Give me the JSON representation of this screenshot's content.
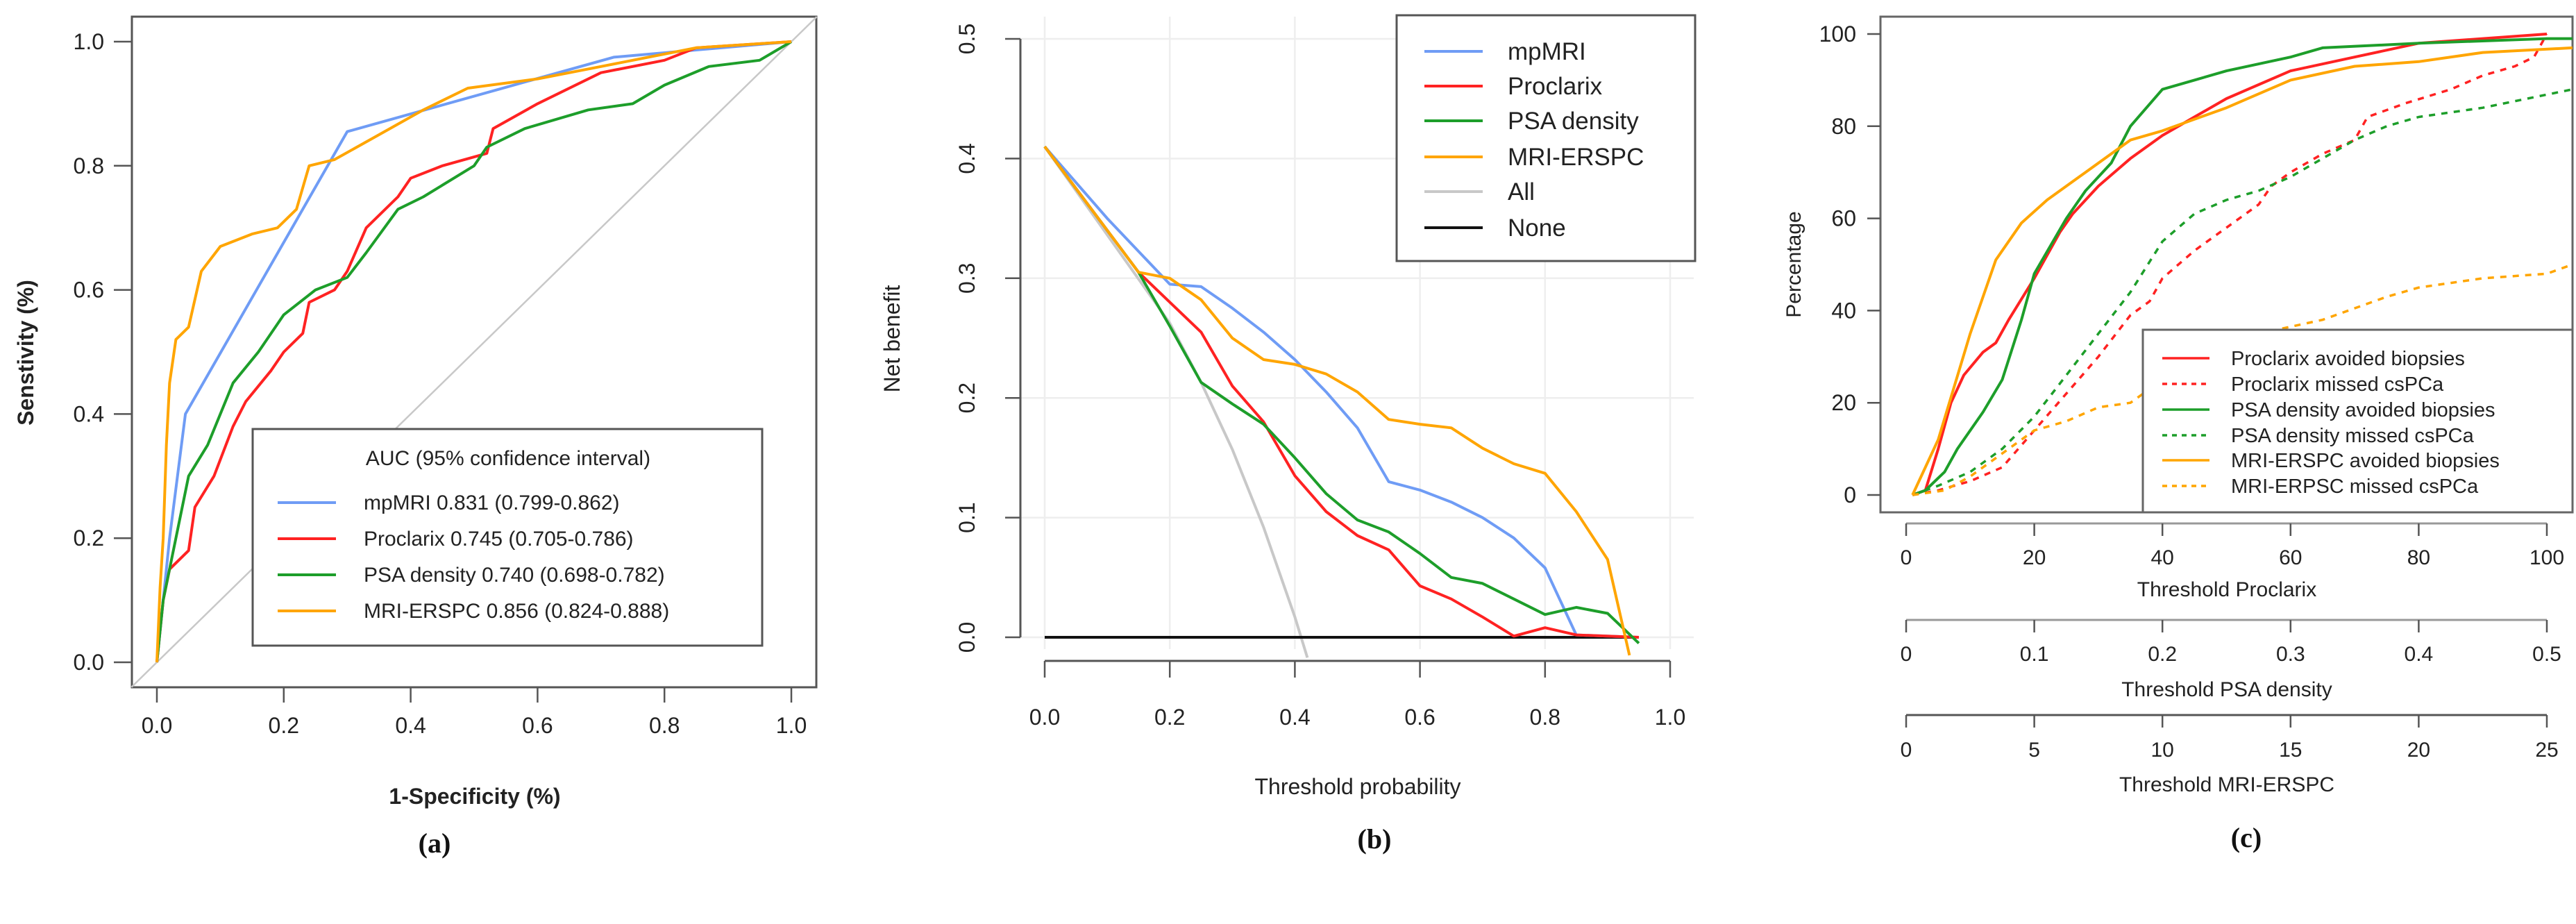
{
  "colors": {
    "mpMRI": "#6f9cf5",
    "Proclarix": "#ff2222",
    "PSA density": "#1d9e2a",
    "MRI-ERSPC": "#ffa500",
    "All": "#c8c8c8",
    "None": "#111111",
    "diag": "#c8c8c8"
  },
  "chart_data": [
    {
      "panel_label": "(a)",
      "type": "line",
      "xlabel": "1-Specificity (%)",
      "ylabel": "Senstivity (%)",
      "xlim": [
        0,
        1
      ],
      "ylim": [
        0,
        1
      ],
      "xticks": [
        "0.0",
        "0.2",
        "0.4",
        "0.6",
        "0.8",
        "1.0"
      ],
      "yticks": [
        "0.0",
        "0.2",
        "0.4",
        "0.6",
        "0.8",
        "1.0"
      ],
      "legend": {
        "title": "AUC (95% confidence interval)",
        "position": "bottom-right",
        "entries": [
          "mpMRI  0.831 (0.799-0.862)",
          "Proclarix  0.745 (0.705-0.786)",
          "PSA density  0.740 (0.698-0.782)",
          "MRI-ERSPC  0.856 (0.824-0.888)"
        ]
      },
      "series": [
        {
          "name": "mpMRI",
          "x": [
            0,
            0.01,
            0.02,
            0.045,
            0.3,
            0.72,
            1
          ],
          "y": [
            0,
            0.1,
            0.2,
            0.4,
            0.855,
            0.975,
            1
          ]
        },
        {
          "name": "Proclarix",
          "x": [
            0,
            0.01,
            0.02,
            0.05,
            0.06,
            0.09,
            0.12,
            0.14,
            0.18,
            0.2,
            0.23,
            0.24,
            0.28,
            0.3,
            0.33,
            0.38,
            0.4,
            0.45,
            0.52,
            0.53,
            0.6,
            0.7,
            0.8,
            0.85,
            1
          ],
          "y": [
            0,
            0.1,
            0.15,
            0.18,
            0.25,
            0.3,
            0.38,
            0.42,
            0.47,
            0.5,
            0.53,
            0.58,
            0.6,
            0.63,
            0.7,
            0.75,
            0.78,
            0.8,
            0.82,
            0.86,
            0.9,
            0.95,
            0.97,
            0.99,
            1
          ]
        },
        {
          "name": "PSA density",
          "x": [
            0,
            0.01,
            0.03,
            0.05,
            0.08,
            0.12,
            0.16,
            0.2,
            0.25,
            0.3,
            0.33,
            0.38,
            0.42,
            0.5,
            0.52,
            0.58,
            0.68,
            0.75,
            0.8,
            0.87,
            0.95,
            1
          ],
          "y": [
            0,
            0.1,
            0.2,
            0.3,
            0.35,
            0.45,
            0.5,
            0.56,
            0.6,
            0.62,
            0.66,
            0.73,
            0.75,
            0.8,
            0.83,
            0.86,
            0.89,
            0.9,
            0.93,
            0.96,
            0.97,
            1
          ]
        },
        {
          "name": "MRI-ERSPC",
          "x": [
            0,
            0.005,
            0.01,
            0.015,
            0.02,
            0.03,
            0.05,
            0.07,
            0.1,
            0.15,
            0.19,
            0.22,
            0.24,
            0.28,
            0.35,
            0.42,
            0.49,
            0.6,
            0.7,
            0.85,
            1
          ],
          "y": [
            0,
            0.12,
            0.2,
            0.35,
            0.45,
            0.52,
            0.54,
            0.63,
            0.67,
            0.69,
            0.7,
            0.73,
            0.8,
            0.81,
            0.85,
            0.89,
            0.925,
            0.94,
            0.96,
            0.99,
            1
          ]
        }
      ]
    },
    {
      "panel_label": "(b)",
      "type": "line",
      "xlabel": "Threshold probability",
      "ylabel": "Net benefit",
      "xlim": [
        0,
        1
      ],
      "ylim": [
        -0.02,
        0.5
      ],
      "grid": true,
      "xticks": [
        "0.0",
        "0.2",
        "0.4",
        "0.6",
        "0.8",
        "1.0"
      ],
      "yticks": [
        "0.0",
        "0.1",
        "0.2",
        "0.3",
        "0.4",
        "0.5"
      ],
      "legend": {
        "position": "top-right",
        "entries": [
          "mpMRI",
          "Proclarix",
          "PSA density",
          "MRI-ERSPC",
          "All",
          "None"
        ]
      },
      "series": [
        {
          "name": "All",
          "x": [
            0,
            0.2,
            0.25,
            0.3,
            0.35,
            0.4,
            0.42
          ],
          "y": [
            0.41,
            0.2625,
            0.213,
            0.157,
            0.092,
            0.017,
            -0.017
          ]
        },
        {
          "name": "None",
          "x": [
            0,
            0.95
          ],
          "y": [
            0,
            0
          ]
        },
        {
          "name": "mpMRI",
          "x": [
            0,
            0.1,
            0.2,
            0.25,
            0.3,
            0.35,
            0.4,
            0.45,
            0.5,
            0.55,
            0.6,
            0.65,
            0.7,
            0.75,
            0.8,
            0.85,
            0.95
          ],
          "y": [
            0.41,
            0.35,
            0.295,
            0.293,
            0.275,
            0.255,
            0.232,
            0.205,
            0.175,
            0.13,
            0.123,
            0.113,
            0.1,
            0.083,
            0.058,
            0.002,
            0
          ]
        },
        {
          "name": "Proclarix",
          "x": [
            0,
            0.15,
            0.2,
            0.25,
            0.3,
            0.35,
            0.4,
            0.45,
            0.5,
            0.55,
            0.6,
            0.65,
            0.7,
            0.75,
            0.8,
            0.85,
            0.95
          ],
          "y": [
            0.41,
            0.305,
            0.28,
            0.255,
            0.21,
            0.18,
            0.135,
            0.105,
            0.085,
            0.073,
            0.043,
            0.032,
            0.017,
            0.001,
            0.008,
            0.002,
            0
          ]
        },
        {
          "name": "PSA density",
          "x": [
            0,
            0.15,
            0.2,
            0.25,
            0.3,
            0.35,
            0.4,
            0.45,
            0.5,
            0.55,
            0.6,
            0.65,
            0.7,
            0.75,
            0.8,
            0.85,
            0.9,
            0.95
          ],
          "y": [
            0.41,
            0.305,
            0.26,
            0.213,
            0.195,
            0.178,
            0.15,
            0.12,
            0.098,
            0.088,
            0.07,
            0.05,
            0.045,
            0.032,
            0.019,
            0.025,
            0.02,
            -0.005
          ]
        },
        {
          "name": "MRI-ERSPC",
          "x": [
            0,
            0.15,
            0.2,
            0.25,
            0.3,
            0.35,
            0.4,
            0.45,
            0.5,
            0.55,
            0.6,
            0.65,
            0.7,
            0.75,
            0.8,
            0.85,
            0.9,
            0.935
          ],
          "y": [
            0.41,
            0.305,
            0.3,
            0.282,
            0.25,
            0.232,
            0.228,
            0.22,
            0.205,
            0.182,
            0.178,
            0.175,
            0.158,
            0.145,
            0.137,
            0.105,
            0.065,
            -0.015
          ]
        }
      ]
    },
    {
      "panel_label": "(c)",
      "type": "line",
      "ylabel": "Percentage",
      "xlim": [
        0,
        104
      ],
      "ylim": [
        0,
        100
      ],
      "yticks": [
        "0",
        "20",
        "40",
        "60",
        "80",
        "100"
      ],
      "x_axes": [
        {
          "title": "Threshold Proclarix",
          "ticks": [
            "0",
            "20",
            "40",
            "60",
            "80",
            "100"
          ]
        },
        {
          "title": "Threshold PSA density",
          "ticks": [
            "0",
            "0.1",
            "0.2",
            "0.3",
            "0.4",
            "0.5"
          ]
        },
        {
          "title": "Threshold MRI-ERSPC",
          "ticks": [
            "0",
            "5",
            "10",
            "15",
            "20",
            "25"
          ]
        }
      ],
      "legend": {
        "position": "bottom-right",
        "entries": [
          "Proclarix avoided biopsies",
          "Proclarix missed csPCa",
          "PSA density avoided biopsies",
          "PSA density missed csPCa",
          "MRI-ERSPC avoided biopsies",
          "MRI-ERPSC missed csPCa"
        ]
      },
      "series": [
        {
          "name": "Proclarix avoided biopsies",
          "color": "Proclarix",
          "dash": false,
          "x": [
            1,
            3,
            5,
            7,
            9,
            12,
            14,
            16,
            20,
            24,
            26,
            30,
            35,
            40,
            45,
            50,
            55,
            60,
            70,
            80,
            90,
            100
          ],
          "y": [
            0,
            1,
            10,
            20,
            26,
            31,
            33,
            38,
            47,
            57,
            61,
            67,
            73,
            78,
            82,
            86,
            89,
            92,
            95,
            98,
            99,
            100
          ]
        },
        {
          "name": "Proclarix missed csPCa",
          "color": "Proclarix",
          "dash": true,
          "x": [
            1,
            5,
            10,
            15,
            20,
            25,
            30,
            35,
            38,
            40,
            45,
            50,
            55,
            57,
            60,
            65,
            70,
            72,
            78,
            85,
            90,
            95,
            98,
            100
          ],
          "y": [
            0,
            1,
            3,
            6,
            14,
            22,
            30,
            39,
            42,
            47,
            53,
            58,
            63,
            67,
            70,
            74,
            77,
            82,
            85,
            88,
            91,
            93,
            95,
            100
          ]
        },
        {
          "name": "PSA density avoided biopsies",
          "color": "PSA density",
          "dash": false,
          "x": [
            1,
            3,
            6,
            8,
            12,
            15,
            18,
            20,
            25,
            28,
            32,
            35,
            40,
            45,
            50,
            60,
            65,
            80,
            100,
            104
          ],
          "y": [
            0,
            1,
            5,
            10,
            18,
            25,
            38,
            48,
            60,
            66,
            72,
            80,
            88,
            90,
            92,
            95,
            97,
            98,
            99,
            99
          ]
        },
        {
          "name": "PSA density missed csPCa",
          "color": "PSA density",
          "dash": true,
          "x": [
            1,
            5,
            10,
            15,
            20,
            25,
            30,
            35,
            40,
            45,
            50,
            55,
            60,
            65,
            70,
            75,
            80,
            90,
            104
          ],
          "y": [
            0,
            2,
            5,
            10,
            17,
            26,
            35,
            44,
            55,
            61,
            64,
            66,
            69,
            73,
            77,
            80,
            82,
            84,
            88
          ]
        },
        {
          "name": "MRI-ERSPC avoided biopsies",
          "color": "MRI-ERSPC",
          "dash": false,
          "x": [
            1,
            5,
            10,
            14,
            18,
            22,
            28,
            35,
            40,
            50,
            60,
            70,
            80,
            90,
            104
          ],
          "y": [
            0,
            12,
            35,
            51,
            59,
            64,
            70,
            77,
            79,
            84,
            90,
            93,
            94,
            96,
            97
          ]
        },
        {
          "name": "MRI-ERPSC missed csPCa",
          "color": "MRI-ERSPC",
          "dash": true,
          "x": [
            1,
            6,
            10,
            15,
            20,
            25,
            30,
            35,
            40,
            45,
            55,
            65,
            75,
            80,
            90,
            100,
            104
          ],
          "y": [
            0,
            1,
            4,
            9,
            14,
            16,
            19,
            20,
            25,
            30,
            35,
            38,
            43,
            45,
            47,
            48,
            50
          ]
        }
      ]
    }
  ]
}
